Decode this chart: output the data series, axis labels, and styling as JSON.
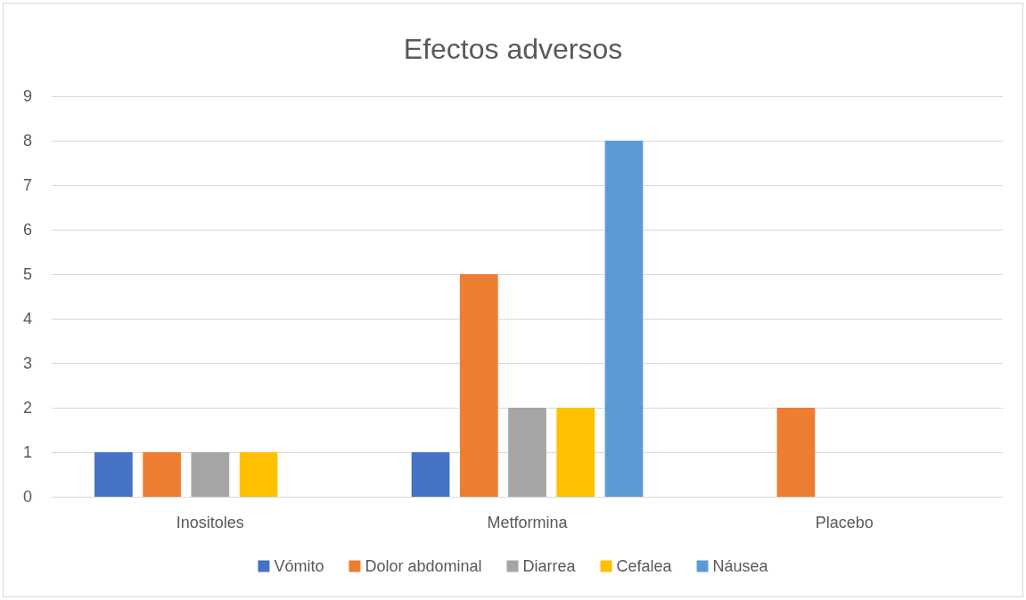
{
  "chart_data": {
    "type": "bar",
    "title": "Efectos adversos",
    "categories": [
      "Inositoles",
      "Metformina",
      "Placebo"
    ],
    "series": [
      {
        "name": "Vómito",
        "color": "#4472c4",
        "values": [
          1,
          1,
          0
        ]
      },
      {
        "name": "Dolor abdominal",
        "color": "#ed7d31",
        "values": [
          1,
          5,
          2
        ]
      },
      {
        "name": "Diarrea",
        "color": "#a5a5a5",
        "values": [
          1,
          2,
          0
        ]
      },
      {
        "name": "Cefalea",
        "color": "#ffc000",
        "values": [
          1,
          2,
          0
        ]
      },
      {
        "name": "Náusea",
        "color": "#5b9bd5",
        "values": [
          0,
          8,
          0
        ]
      }
    ],
    "ylim": [
      0,
      9
    ],
    "yticks": [
      0,
      1,
      2,
      3,
      4,
      5,
      6,
      7,
      8,
      9
    ],
    "grid": "y",
    "legend": "bottom"
  }
}
